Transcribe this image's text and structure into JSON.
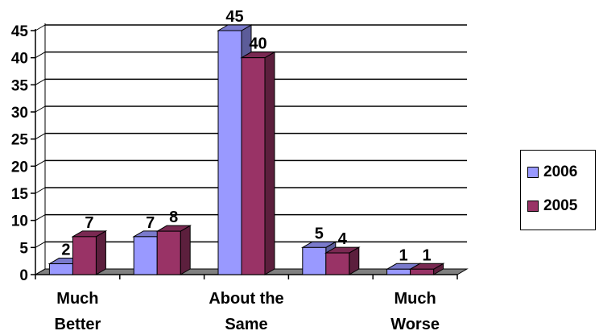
{
  "chart_data": {
    "type": "bar",
    "title": "",
    "xlabel": "",
    "ylabel": "",
    "categories": [
      [
        "Much",
        "Better"
      ],
      [
        "",
        ""
      ],
      [
        "About the",
        "Same"
      ],
      [
        "",
        ""
      ],
      [
        "Much",
        "Worse"
      ]
    ],
    "series": [
      {
        "name": "2006",
        "values": [
          2,
          7,
          45,
          5,
          1
        ],
        "color": "#9999ff"
      },
      {
        "name": "2005",
        "values": [
          7,
          8,
          40,
          4,
          1
        ],
        "color": "#993366"
      }
    ],
    "yticks": [
      0,
      5,
      10,
      15,
      20,
      25,
      30,
      35,
      40,
      45
    ],
    "ylim": [
      0,
      45
    ],
    "grid": true,
    "legend_position": "right",
    "style": "3d-clustered-column"
  }
}
